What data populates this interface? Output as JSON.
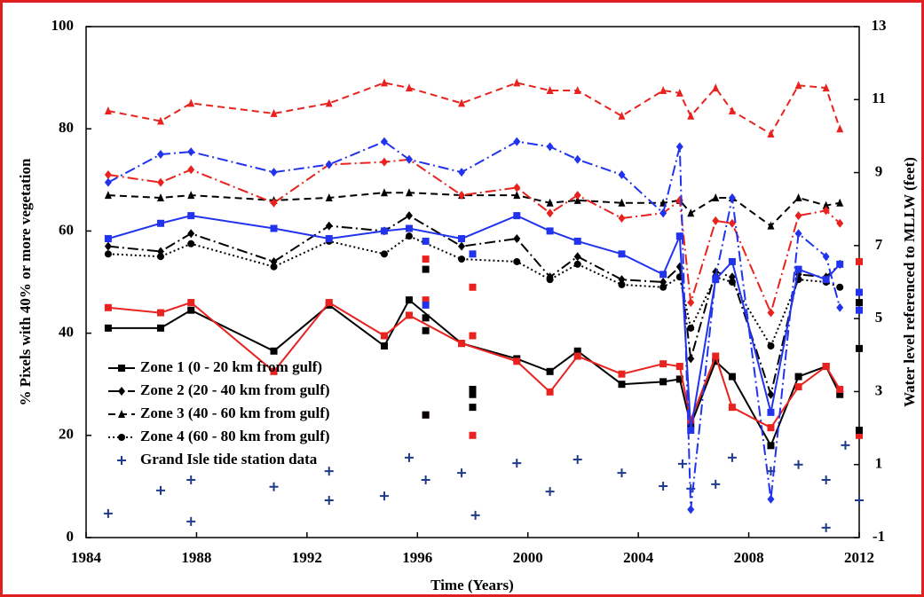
{
  "chart_data": {
    "type": "line",
    "xlabel": "Time (Years)",
    "ylabel": "% Pixels with 40% or more vegetation",
    "y2label": "Water level referenced to MLLW (feet)",
    "xlim": [
      1984,
      2012
    ],
    "xticks": [
      1984,
      1988,
      1992,
      1996,
      2000,
      2004,
      2008,
      2012
    ],
    "ylim": [
      0,
      100
    ],
    "yticks": [
      0,
      20,
      40,
      60,
      80,
      100
    ],
    "y2lim": [
      -1,
      13
    ],
    "y2ticks": [
      -1,
      1,
      3,
      5,
      7,
      9,
      11,
      13
    ],
    "legend": "lower-left",
    "series": [
      {
        "name": "Zone 1 (0 - 20 km from gulf)",
        "color": "#000000",
        "style": "solid",
        "marker": "square",
        "x": [
          1984.8,
          1986.7,
          1987.8,
          1990.8,
          1992.8,
          1994.8,
          1995.7,
          1997.6,
          1999.6,
          2000.8,
          2001.8,
          2003.4,
          2004.9,
          2005.5,
          2005.9,
          2006.8,
          2007.4,
          2008.8,
          2009.8,
          2010.8,
          2011.3
        ],
        "values": [
          41,
          41,
          44.5,
          36.5,
          45.5,
          37.5,
          46.5,
          38,
          35,
          32.5,
          36.5,
          30,
          30.5,
          31,
          22,
          34.5,
          31.5,
          18,
          31.5,
          33.5,
          28
        ]
      },
      {
        "name": "Zone 2 (20 - 40 km from gulf)",
        "color": "#000000",
        "style": "dashdot",
        "marker": "diamond",
        "x": [
          1984.8,
          1986.7,
          1987.8,
          1990.8,
          1992.8,
          1994.8,
          1995.7,
          1997.6,
          1999.6,
          2000.8,
          2001.8,
          2003.4,
          2004.9,
          2005.5,
          2005.9,
          2006.8,
          2007.4,
          2008.8,
          2009.8,
          2010.8,
          2011.3
        ],
        "values": [
          57,
          56,
          59.5,
          54,
          61,
          60,
          63,
          57,
          58.5,
          51,
          55,
          50.5,
          50,
          53,
          35,
          52,
          51,
          28,
          51.5,
          51,
          53.5
        ]
      },
      {
        "name": "Zone 3 (40 - 60 km from gulf)",
        "color": "#000000",
        "style": "dashed",
        "marker": "triangle",
        "x": [
          1984.8,
          1986.7,
          1987.8,
          1990.8,
          1992.8,
          1994.8,
          1995.7,
          1997.6,
          1999.6,
          2000.8,
          2001.8,
          2003.4,
          2004.9,
          2005.5,
          2005.9,
          2006.8,
          2007.4,
          2008.8,
          2009.8,
          2010.8,
          2011.3
        ],
        "values": [
          67,
          66.5,
          67,
          66,
          66.5,
          67.5,
          67.5,
          67,
          67,
          65.5,
          66,
          65.5,
          65.5,
          66,
          63.5,
          66.5,
          66.5,
          61,
          66.5,
          65,
          65.5
        ]
      },
      {
        "name": "Zone 4 (60 - 80 km from gulf)",
        "color": "#000000",
        "style": "dotted",
        "marker": "circle",
        "x": [
          1984.8,
          1986.7,
          1987.8,
          1990.8,
          1992.8,
          1994.8,
          1995.7,
          1997.6,
          1999.6,
          2000.8,
          2001.8,
          2003.4,
          2004.9,
          2005.5,
          2005.9,
          2006.8,
          2007.4,
          2008.8,
          2009.8,
          2010.8,
          2011.3
        ],
        "values": [
          55.5,
          55,
          57.5,
          53,
          58,
          55.5,
          59,
          54.5,
          54,
          50.5,
          53.5,
          49.5,
          49,
          51,
          41,
          51,
          50,
          37.5,
          50.5,
          50,
          49
        ]
      },
      {
        "name": "Grand Isle tide station data",
        "color": "#1f3a8a",
        "style": "none",
        "marker": "plus",
        "axis": "y2",
        "x": [
          1984.8,
          1986.7,
          1987.8,
          1987.8,
          1990.8,
          1992.8,
          1992.8,
          1994.8,
          1995.7,
          1996.3,
          1997.6,
          1998.1,
          1999.6,
          2000.8,
          2001.8,
          2003.4,
          2004.9,
          2005.6,
          2005.9,
          2006.8,
          2007.4,
          2008.8,
          2009.8,
          2010.8,
          2010.8,
          2011.5,
          2012
        ],
        "values": [
          -0.34,
          0.29,
          0.58,
          -0.56,
          0.39,
          0.82,
          0.02,
          0.14,
          1.19,
          0.58,
          0.77,
          -0.39,
          1.04,
          0.26,
          1.14,
          0.77,
          0.41,
          1.02,
          0.34,
          0.46,
          1.19,
          0.82,
          1.0,
          0.58,
          -0.73,
          1.53,
          0.02
        ]
      },
      {
        "color": "#e8231f",
        "style": "solid",
        "marker": "square",
        "x": [
          1984.8,
          1986.7,
          1987.8,
          1990.8,
          1992.8,
          1994.8,
          1995.7,
          1997.6,
          1999.6,
          2000.8,
          2001.8,
          2003.4,
          2004.9,
          2005.5,
          2005.9,
          2006.8,
          2007.4,
          2008.8,
          2009.8,
          2010.8,
          2011.3
        ],
        "values": [
          45,
          44,
          46,
          32.5,
          46,
          39.5,
          43.5,
          38,
          34.5,
          28.5,
          35.5,
          32,
          34,
          33.5,
          23,
          35.5,
          25.5,
          21.5,
          29.5,
          33.5,
          29
        ]
      },
      {
        "color": "#e8231f",
        "style": "dashdot",
        "marker": "diamond",
        "x": [
          1984.8,
          1986.7,
          1987.8,
          1990.8,
          1992.8,
          1994.8,
          1995.7,
          1997.6,
          1999.6,
          2000.8,
          2001.8,
          2003.4,
          2004.9,
          2005.5,
          2005.9,
          2006.8,
          2007.4,
          2008.8,
          2009.8,
          2010.8,
          2011.3
        ],
        "values": [
          71,
          69.5,
          72,
          65.5,
          73,
          73.5,
          74,
          67,
          68.5,
          63.5,
          67,
          62.5,
          63.5,
          66,
          46,
          62,
          61.5,
          44,
          63,
          64,
          61.5
        ]
      },
      {
        "color": "#e8231f",
        "style": "dashed",
        "marker": "triangle",
        "x": [
          1984.8,
          1986.7,
          1987.8,
          1990.8,
          1992.8,
          1994.8,
          1995.7,
          1997.6,
          1999.6,
          2000.8,
          2001.8,
          2003.4,
          2004.9,
          2005.5,
          2005.9,
          2006.8,
          2007.4,
          2008.8,
          2009.8,
          2010.8,
          2011.3
        ],
        "values": [
          83.5,
          81.5,
          85,
          83,
          85,
          89,
          88,
          85,
          89,
          87.5,
          87.5,
          82.5,
          87.5,
          87,
          82.5,
          88,
          83.5,
          79,
          88.5,
          88,
          80
        ]
      },
      {
        "color": "#2233ee",
        "style": "solid",
        "marker": "square",
        "x": [
          1984.8,
          1986.7,
          1987.8,
          1990.8,
          1992.8,
          1994.8,
          1995.7,
          1997.6,
          1999.6,
          2000.8,
          2001.8,
          2003.4,
          2004.9,
          2005.5,
          2005.9,
          2006.8,
          2007.4,
          2008.8,
          2009.8,
          2010.8,
          2011.3
        ],
        "values": [
          58.5,
          61.5,
          63,
          60.5,
          58.5,
          60,
          60.5,
          58.5,
          63,
          60,
          58,
          55.5,
          51.5,
          59,
          21,
          50.5,
          54,
          24.5,
          52.5,
          50.5,
          53.5
        ]
      },
      {
        "color": "#2233ee",
        "style": "dashdot",
        "marker": "diamond",
        "x": [
          1984.8,
          1986.7,
          1987.8,
          1990.8,
          1992.8,
          1994.8,
          1995.7,
          1997.6,
          1999.6,
          2000.8,
          2001.8,
          2003.4,
          2004.9,
          2005.5,
          2005.9,
          2006.8,
          2007.4,
          2008.8,
          2009.8,
          2010.8,
          2011.3
        ],
        "values": [
          69.5,
          75,
          75.5,
          71.5,
          73,
          77.5,
          74,
          71.5,
          77.5,
          76.5,
          74,
          71,
          63.5,
          76.5,
          5.5,
          51,
          66.5,
          7.5,
          59.5,
          55,
          45
        ]
      },
      {
        "color": "#e8231f",
        "style": "none",
        "marker": "square",
        "x": [
          1996.3,
          1996.3,
          1996.3,
          1998,
          1998,
          1998,
          2012,
          2012
        ],
        "values": [
          54.5,
          46.5,
          24,
          49,
          39.5,
          20,
          54,
          20
        ]
      },
      {
        "color": "#2233ee",
        "style": "none",
        "marker": "square",
        "x": [
          1996.3,
          1996.3,
          1998,
          2012,
          2012
        ],
        "values": [
          58,
          45.5,
          55.5,
          48,
          44.5
        ]
      },
      {
        "color": "#000000",
        "style": "none",
        "marker": "square",
        "x": [
          1996.3,
          1996.3,
          1996.3,
          1996.3,
          1998,
          1998,
          1998,
          2012,
          2012,
          2012
        ],
        "values": [
          52.5,
          43,
          40.5,
          24,
          29,
          28,
          25.5,
          46,
          37,
          21
        ]
      }
    ]
  }
}
